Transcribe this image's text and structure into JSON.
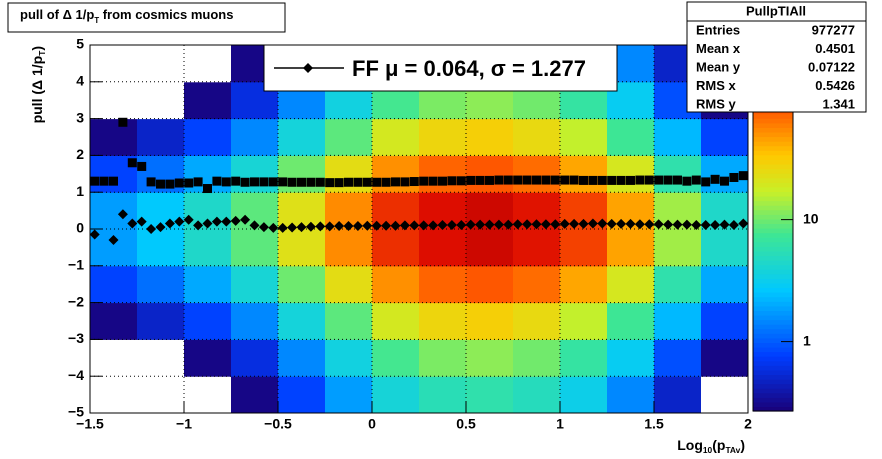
{
  "chart_data": {
    "type": "heatmap-profile",
    "title": [
      {
        "text": "pull of Δ 1/p"
      },
      {
        "text": "T",
        "sub": true
      },
      {
        "text": " from cosmics muons"
      }
    ],
    "x_label": [
      {
        "text": "Log"
      },
      {
        "text": "10",
        "sub": true
      },
      {
        "text": "(p"
      },
      {
        "text": "TAv",
        "sub": true
      },
      {
        "text": ")"
      }
    ],
    "y_label": [
      {
        "text": "pull (Δ 1/p"
      },
      {
        "text": "T",
        "sub": true
      },
      {
        "text": ")"
      }
    ],
    "xlim": [
      -1.5,
      2
    ],
    "ylim": [
      -5,
      5
    ],
    "xticks": [
      {
        "value": -1.5,
        "label": "−1.5"
      },
      {
        "value": -1,
        "label": "−1"
      },
      {
        "value": -0.5,
        "label": "−0.5"
      },
      0,
      0.5,
      1,
      1.5,
      2
    ],
    "yticks": [
      {
        "value": -5,
        "label": "−5"
      },
      {
        "value": -4,
        "label": "−4"
      },
      {
        "value": -3,
        "label": "−3"
      },
      {
        "value": -2,
        "label": "−2"
      },
      {
        "value": -1,
        "label": "−1"
      },
      0,
      1,
      2,
      3,
      4,
      5
    ],
    "grid": true,
    "zlim": [
      0.27,
      270
    ],
    "zticks": [
      1,
      10
    ],
    "zlog": true,
    "heatmap": {
      "xbins": [
        -1.5,
        -1.25,
        -1,
        -0.75,
        -0.5,
        -0.25,
        0,
        0.25,
        0.5,
        0.75,
        1,
        1.25,
        1.5,
        1.75,
        2
      ],
      "ybins": [
        -5,
        -4,
        -3,
        -2,
        -1,
        0,
        1,
        2,
        3,
        4,
        5
      ],
      "z": [
        [
          0.1,
          0.1,
          0.2,
          0.3,
          0.8,
          1.8,
          3.9,
          5.4,
          6,
          5.1,
          3.3,
          1.5,
          0.5,
          0.2
        ],
        [
          0.1,
          0.2,
          0.3,
          0.6,
          1.5,
          3.6,
          7.8,
          10.8,
          12,
          10.2,
          6.6,
          3,
          0.9,
          0.3
        ],
        [
          0.3,
          0.5,
          0.8,
          1.5,
          3.8,
          9,
          19.5,
          27,
          30,
          25.5,
          16.5,
          7.5,
          2.3,
          0.8
        ],
        [
          0.8,
          1.2,
          2,
          4,
          10,
          24,
          52,
          72,
          80,
          68,
          44,
          20,
          6,
          2
        ],
        [
          1.8,
          2.7,
          4.5,
          9,
          22.5,
          54,
          117,
          162,
          180,
          153,
          99,
          45,
          13.5,
          4.5
        ],
        [
          1.8,
          2.7,
          4.5,
          9,
          22.5,
          54,
          117,
          162,
          180,
          153,
          99,
          45,
          13.5,
          4.5
        ],
        [
          0.8,
          1.2,
          2,
          4,
          10,
          24,
          52,
          72,
          80,
          68,
          44,
          20,
          6,
          2
        ],
        [
          0.3,
          0.5,
          0.8,
          1.5,
          3.8,
          9,
          19.5,
          27,
          30,
          25.5,
          16.5,
          7.5,
          2.3,
          0.8
        ],
        [
          0.1,
          0.2,
          0.3,
          0.6,
          1.5,
          3.6,
          7.8,
          10.8,
          12,
          10.2,
          6.6,
          3,
          0.9,
          0.3
        ],
        [
          0.1,
          0.1,
          0.2,
          0.3,
          0.8,
          1.8,
          3.9,
          5.4,
          6,
          5.1,
          3.3,
          1.5,
          0.5,
          0.2
        ]
      ]
    },
    "x": [
      -1.475,
      -1.425,
      -1.375,
      -1.325,
      -1.275,
      -1.225,
      -1.175,
      -1.125,
      -1.075,
      -1.025,
      -0.975,
      -0.925,
      -0.875,
      -0.825,
      -0.775,
      -0.725,
      -0.675,
      -0.625,
      -0.575,
      -0.525,
      -0.475,
      -0.425,
      -0.375,
      -0.325,
      -0.275,
      -0.225,
      -0.175,
      -0.125,
      -0.075,
      -0.025,
      0.025,
      0.075,
      0.125,
      0.175,
      0.225,
      0.275,
      0.325,
      0.375,
      0.425,
      0.475,
      0.525,
      0.575,
      0.625,
      0.675,
      0.725,
      0.775,
      0.825,
      0.875,
      0.925,
      0.975,
      1.025,
      1.075,
      1.125,
      1.175,
      1.225,
      1.275,
      1.325,
      1.375,
      1.425,
      1.475,
      1.525,
      1.575,
      1.625,
      1.675,
      1.725,
      1.775,
      1.825,
      1.875,
      1.925,
      1.975
    ],
    "series": [
      {
        "color": "#000000",
        "marker": "square",
        "values": [
          1.3,
          1.3,
          1.3,
          2.9,
          1.8,
          1.7,
          1.28,
          1.22,
          1.22,
          1.25,
          1.25,
          1.28,
          1.1,
          1.3,
          1.28,
          1.3,
          1.27,
          1.28,
          1.28,
          1.28,
          1.28,
          1.27,
          1.27,
          1.27,
          1.27,
          1.26,
          1.26,
          1.27,
          1.27,
          1.27,
          1.27,
          1.27,
          1.28,
          1.28,
          1.29,
          1.3,
          1.3,
          1.3,
          1.31,
          1.31,
          1.32,
          1.32,
          1.32,
          1.33,
          1.33,
          1.33,
          1.33,
          1.33,
          1.33,
          1.33,
          1.33,
          1.33,
          1.32,
          1.32,
          1.32,
          1.32,
          1.32,
          1.32,
          1.33,
          1.33,
          1.33,
          1.33,
          1.33,
          1.3,
          1.33,
          1.28,
          1.35,
          1.3,
          1.4,
          1.45
        ]
      },
      {
        "name": "FF μ =  0.064, σ =   1.277",
        "color": "#000000",
        "marker": "diamond",
        "values": [
          -0.15,
          null,
          -0.3,
          0.4,
          0.15,
          0.2,
          0.0,
          0.05,
          0.15,
          0.2,
          0.25,
          0.1,
          0.15,
          0.2,
          0.2,
          0.22,
          0.25,
          0.1,
          0.05,
          0.03,
          0.03,
          0.04,
          0.05,
          0.06,
          0.07,
          0.07,
          0.08,
          0.08,
          0.08,
          0.09,
          0.09,
          0.09,
          0.09,
          0.1,
          0.1,
          0.1,
          0.1,
          0.11,
          0.11,
          0.11,
          0.12,
          0.12,
          0.12,
          0.12,
          0.12,
          0.13,
          0.13,
          0.13,
          0.13,
          0.13,
          0.14,
          0.14,
          0.14,
          0.15,
          0.15,
          0.14,
          0.14,
          0.14,
          0.13,
          0.13,
          0.13,
          0.12,
          0.12,
          0.12,
          0.11,
          0.11,
          0.11,
          0.12,
          0.11,
          0.15
        ]
      }
    ],
    "stats": {
      "title": "PullpTIAll",
      "rows": [
        [
          "Entries",
          977277
        ],
        [
          "Mean x",
          0.4501
        ],
        [
          "Mean y",
          0.07122
        ],
        [
          "RMS x",
          0.5426
        ],
        [
          "RMS y",
          1.341
        ]
      ]
    }
  }
}
